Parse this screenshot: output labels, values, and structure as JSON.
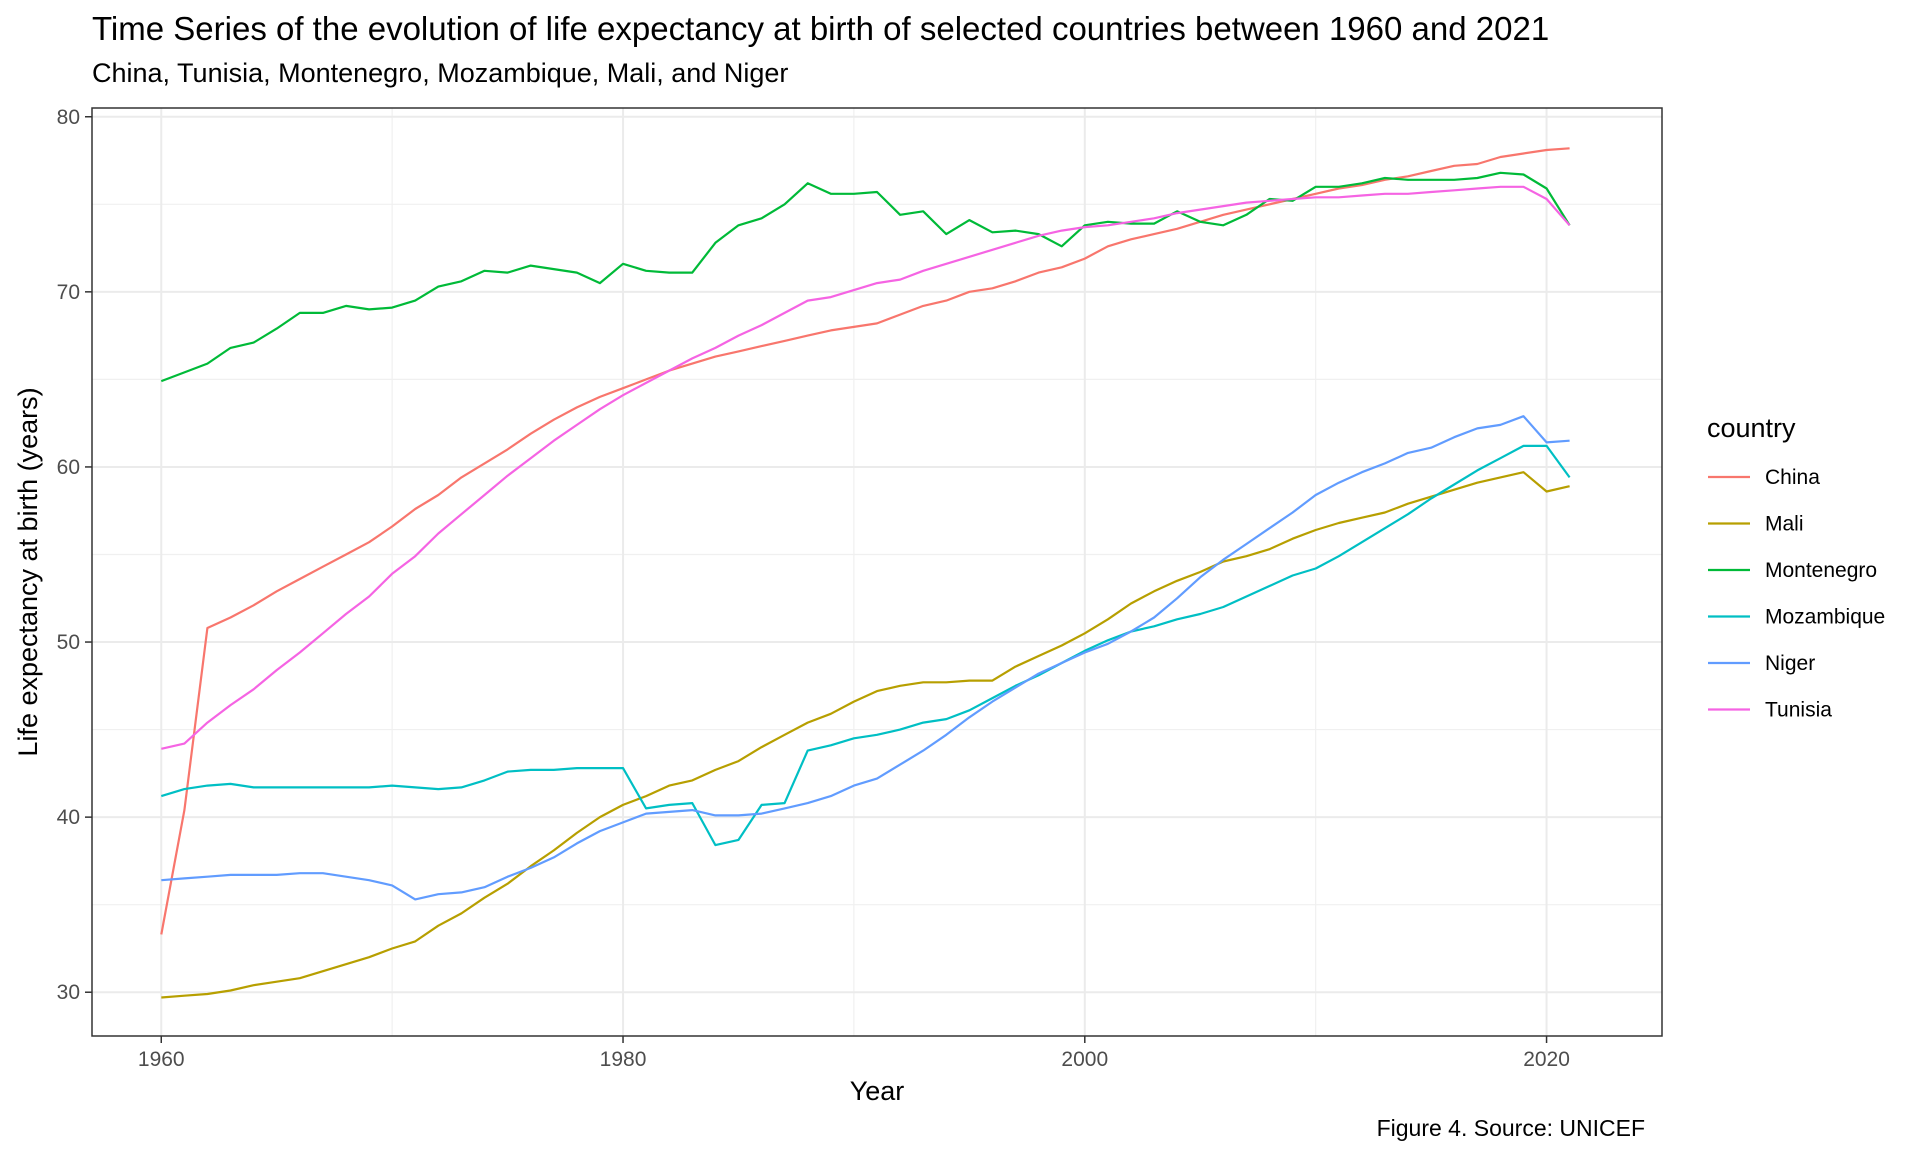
{
  "title": "Time Series of the evolution of life expectancy at birth of selected countries between 1960 and 2021",
  "subtitle": "China, Tunisia, Montenegro, Mozambique, Mali, and Niger",
  "caption": "Figure 4. Source: UNICEF",
  "chart_data": {
    "type": "line",
    "title": "Time Series of the evolution of life expectancy at birth of selected countries between 1960 and 2021",
    "subtitle": "China, Tunisia, Montenegro, Mozambique, Mali, and Niger",
    "xlabel": "Year",
    "ylabel": "Life expectancy at birth (years)",
    "xlim": [
      1957,
      2025
    ],
    "ylim": [
      27.5,
      80.5
    ],
    "xticks": [
      1960,
      1980,
      2000,
      2020
    ],
    "yticks": [
      30,
      40,
      50,
      60,
      70,
      80
    ],
    "grid": true,
    "legend": {
      "title": "country",
      "position": "right"
    },
    "x": [
      1960,
      1961,
      1962,
      1963,
      1964,
      1965,
      1966,
      1967,
      1968,
      1969,
      1970,
      1971,
      1972,
      1973,
      1974,
      1975,
      1976,
      1977,
      1978,
      1979,
      1980,
      1981,
      1982,
      1983,
      1984,
      1985,
      1986,
      1987,
      1988,
      1989,
      1990,
      1991,
      1992,
      1993,
      1994,
      1995,
      1996,
      1997,
      1998,
      1999,
      2000,
      2001,
      2002,
      2003,
      2004,
      2005,
      2006,
      2007,
      2008,
      2009,
      2010,
      2011,
      2012,
      2013,
      2014,
      2015,
      2016,
      2017,
      2018,
      2019,
      2020,
      2021
    ],
    "series": [
      {
        "name": "China",
        "color": "#F8766D",
        "values": [
          33.3,
          40.4,
          50.8,
          51.4,
          52.1,
          52.9,
          53.6,
          54.3,
          55.0,
          55.7,
          56.6,
          57.6,
          58.4,
          59.4,
          60.2,
          61.0,
          61.9,
          62.7,
          63.4,
          64.0,
          64.5,
          65.0,
          65.5,
          65.9,
          66.3,
          66.6,
          66.9,
          67.2,
          67.5,
          67.8,
          68.0,
          68.2,
          68.7,
          69.2,
          69.5,
          70.0,
          70.2,
          70.6,
          71.1,
          71.4,
          71.9,
          72.6,
          73.0,
          73.3,
          73.6,
          74.0,
          74.4,
          74.7,
          75.0,
          75.3,
          75.6,
          75.9,
          76.1,
          76.4,
          76.6,
          76.9,
          77.2,
          77.3,
          77.7,
          77.9,
          78.1,
          78.2
        ]
      },
      {
        "name": "Mali",
        "color": "#B79F00",
        "values": [
          29.7,
          29.8,
          29.9,
          30.1,
          30.4,
          30.6,
          30.8,
          31.2,
          31.6,
          32.0,
          32.5,
          32.9,
          33.8,
          34.5,
          35.4,
          36.2,
          37.2,
          38.1,
          39.1,
          40.0,
          40.7,
          41.2,
          41.8,
          42.1,
          42.7,
          43.2,
          44.0,
          44.7,
          45.4,
          45.9,
          46.6,
          47.2,
          47.5,
          47.7,
          47.7,
          47.8,
          47.8,
          48.6,
          49.2,
          49.8,
          50.5,
          51.3,
          52.2,
          52.9,
          53.5,
          54.0,
          54.6,
          54.9,
          55.3,
          55.9,
          56.4,
          56.8,
          57.1,
          57.4,
          57.9,
          58.3,
          58.7,
          59.1,
          59.4,
          59.7,
          58.6,
          58.9
        ]
      },
      {
        "name": "Montenegro",
        "color": "#00BA38",
        "values": [
          64.9,
          65.4,
          65.9,
          66.8,
          67.1,
          67.9,
          68.8,
          68.8,
          69.2,
          69.0,
          69.1,
          69.5,
          70.3,
          70.6,
          71.2,
          71.1,
          71.5,
          71.3,
          71.1,
          70.5,
          71.6,
          71.2,
          71.1,
          71.1,
          72.8,
          73.8,
          74.2,
          75.0,
          76.2,
          75.6,
          75.6,
          75.7,
          74.4,
          74.6,
          73.3,
          74.1,
          73.4,
          73.5,
          73.3,
          72.6,
          73.8,
          74.0,
          73.9,
          73.9,
          74.6,
          74.0,
          73.8,
          74.4,
          75.3,
          75.2,
          76.0,
          76.0,
          76.2,
          76.5,
          76.4,
          76.4,
          76.4,
          76.5,
          76.8,
          76.7,
          75.9,
          73.8
        ]
      },
      {
        "name": "Mozambique",
        "color": "#00BFC4",
        "values": [
          41.2,
          41.6,
          41.8,
          41.9,
          41.7,
          41.7,
          41.7,
          41.7,
          41.7,
          41.7,
          41.8,
          41.7,
          41.6,
          41.7,
          42.1,
          42.6,
          42.7,
          42.7,
          42.8,
          42.8,
          42.8,
          40.5,
          40.7,
          40.8,
          38.4,
          38.7,
          40.7,
          40.8,
          43.8,
          44.1,
          44.5,
          44.7,
          45.0,
          45.4,
          45.6,
          46.1,
          46.8,
          47.5,
          48.1,
          48.8,
          49.5,
          50.1,
          50.6,
          50.9,
          51.3,
          51.6,
          52.0,
          52.6,
          53.2,
          53.8,
          54.2,
          54.9,
          55.7,
          56.5,
          57.3,
          58.2,
          59.0,
          59.8,
          60.5,
          61.2,
          61.2,
          59.4
        ]
      },
      {
        "name": "Niger",
        "color": "#619CFF",
        "values": [
          36.4,
          36.5,
          36.6,
          36.7,
          36.7,
          36.7,
          36.8,
          36.8,
          36.6,
          36.4,
          36.1,
          35.3,
          35.6,
          35.7,
          36.0,
          36.6,
          37.1,
          37.7,
          38.5,
          39.2,
          39.7,
          40.2,
          40.3,
          40.4,
          40.1,
          40.1,
          40.2,
          40.5,
          40.8,
          41.2,
          41.8,
          42.2,
          43.0,
          43.8,
          44.7,
          45.7,
          46.6,
          47.4,
          48.2,
          48.8,
          49.4,
          49.9,
          50.6,
          51.4,
          52.5,
          53.7,
          54.7,
          55.6,
          56.5,
          57.4,
          58.4,
          59.1,
          59.7,
          60.2,
          60.8,
          61.1,
          61.7,
          62.2,
          62.4,
          62.9,
          61.4,
          61.5
        ]
      },
      {
        "name": "Tunisia",
        "color": "#F564E3",
        "values": [
          43.9,
          44.2,
          45.4,
          46.4,
          47.3,
          48.4,
          49.4,
          50.5,
          51.6,
          52.6,
          53.9,
          54.9,
          56.2,
          57.3,
          58.4,
          59.5,
          60.5,
          61.5,
          62.4,
          63.3,
          64.1,
          64.8,
          65.5,
          66.2,
          66.8,
          67.5,
          68.1,
          68.8,
          69.5,
          69.7,
          70.1,
          70.5,
          70.7,
          71.2,
          71.6,
          72.0,
          72.4,
          72.8,
          73.2,
          73.5,
          73.7,
          73.8,
          74.0,
          74.2,
          74.5,
          74.7,
          74.9,
          75.1,
          75.2,
          75.3,
          75.4,
          75.4,
          75.5,
          75.6,
          75.6,
          75.7,
          75.8,
          75.9,
          76.0,
          76.0,
          75.3,
          73.8
        ]
      }
    ]
  }
}
